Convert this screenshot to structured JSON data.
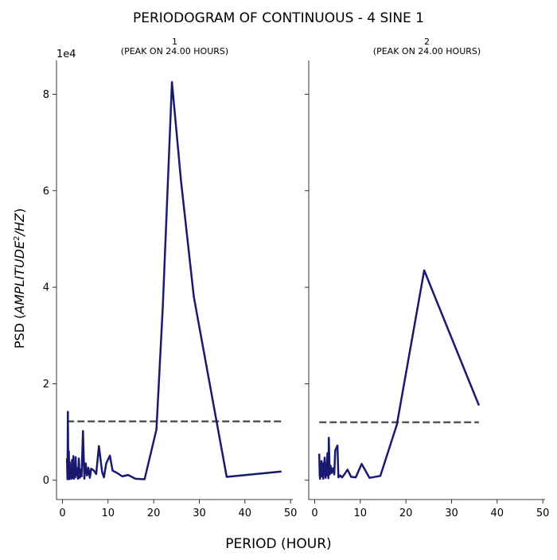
{
  "figure": {
    "title": "PERIODOGRAM OF CONTINUOUS - 4 SINE 1",
    "xlabel": "PERIOD (HOUR)",
    "ylabel_prefix": "PSD (",
    "ylabel_math": "AMPLITUDE",
    "ylabel_exp": "2",
    "ylabel_math2": "/HZ",
    "ylabel_suffix": ")",
    "offset_text": "1e4"
  },
  "colors": {
    "series": "#191970",
    "threshold": "#555555"
  },
  "chart_data": [
    {
      "type": "line",
      "title_line1": "1",
      "title_line2": "(PEAK ON 24.00 HOURS)",
      "xlim": [
        -1.3,
        50.5
      ],
      "ylim": [
        -4000,
        87000
      ],
      "xticks": [
        0,
        10,
        20,
        30,
        40,
        50
      ],
      "yticks": [
        0,
        20000,
        40000,
        60000,
        80000
      ],
      "ytick_labels": [
        "0",
        "2",
        "4",
        "6",
        "8"
      ],
      "series": [
        {
          "x": [
            1.0,
            1.1,
            1.2,
            1.3,
            1.4,
            1.5,
            1.6,
            1.7,
            1.8,
            2.0,
            2.1,
            2.2,
            2.4,
            2.5,
            2.6,
            2.8,
            2.9,
            3.0,
            3.2,
            3.4,
            3.6,
            3.8,
            4.0,
            4.2,
            4.5,
            4.8,
            5.1,
            5.4,
            5.7,
            6.0,
            6.3,
            6.9,
            7.4,
            8.0,
            8.7,
            9.1,
            9.6,
            10.4,
            11.0,
            12.0,
            13.1,
            14.4,
            16.0,
            18.0,
            20.6,
            22.0,
            24.0,
            26.0,
            28.8,
            36.0,
            48.0
          ],
          "y": [
            4500,
            200,
            14200,
            300,
            6000,
            200,
            3800,
            400,
            2500,
            300,
            4200,
            500,
            5000,
            300,
            3000,
            600,
            4800,
            1000,
            2500,
            300,
            4500,
            500,
            2200,
            800,
            10200,
            300,
            3500,
            1000,
            2600,
            500,
            2400,
            2000,
            1300,
            7100,
            1700,
            600,
            3500,
            5100,
            2000,
            1500,
            800,
            1100,
            300,
            200,
            10500,
            36000,
            82500,
            62000,
            38000,
            700,
            1800
          ]
        }
      ],
      "threshold": {
        "x": [
          1.0,
          48.0
        ],
        "y": [
          12200,
          12200
        ]
      }
    },
    {
      "type": "line",
      "title_line1": "2",
      "title_line2": "(PEAK ON 24.00 HOURS)",
      "xlim": [
        -1.3,
        50.5
      ],
      "ylim": [
        -4000,
        87000
      ],
      "xticks": [
        0,
        10,
        20,
        30,
        40,
        50
      ],
      "yticks": [
        0,
        20000,
        40000,
        60000,
        80000
      ],
      "series": [
        {
          "x": [
            1.0,
            1.1,
            1.2,
            1.3,
            1.4,
            1.5,
            1.6,
            1.8,
            1.9,
            2.0,
            2.2,
            2.4,
            2.5,
            2.6,
            2.8,
            3.0,
            3.1,
            3.3,
            3.5,
            3.7,
            4.0,
            4.3,
            4.5,
            5.0,
            5.2,
            5.6,
            6.0,
            6.5,
            7.2,
            8.0,
            9.0,
            10.3,
            12.0,
            14.4,
            18.0,
            24.0,
            36.0
          ],
          "y": [
            5500,
            1000,
            300,
            3000,
            1200,
            4000,
            800,
            3500,
            300,
            2500,
            4700,
            500,
            3000,
            1000,
            5600,
            400,
            8800,
            1200,
            3000,
            1500,
            2500,
            1200,
            6200,
            7200,
            600,
            1000,
            600,
            1200,
            2200,
            700,
            600,
            3400,
            500,
            900,
            11500,
            43500,
            15500
          ]
        }
      ],
      "threshold": {
        "x": [
          1.0,
          36.0
        ],
        "y": [
          12000,
          12000
        ]
      }
    }
  ]
}
